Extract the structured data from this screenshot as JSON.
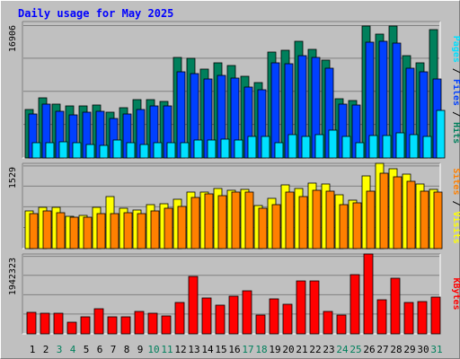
{
  "title": "Daily usage for May 2025",
  "colors": {
    "hits": "#00805C",
    "files": "#0040FF",
    "pages": "#00E0FF",
    "visits": "#FFFF00",
    "sites": "#FF8000",
    "kbytes": "#FF0000",
    "weekday_label": "#000000",
    "weekend_label": "#00805C",
    "title": "#0000FF",
    "plot_bg": "#C0C0C0",
    "grid": "#808080"
  },
  "chart_data": [
    {
      "type": "bar",
      "panel": "hits-files-pages",
      "axis_label": "16906",
      "ylim": [
        0,
        16906
      ],
      "legend": [
        "Pages",
        "Files",
        "Hits"
      ],
      "categories": [
        "1",
        "2",
        "3",
        "4",
        "5",
        "6",
        "7",
        "8",
        "9",
        "10",
        "11",
        "12",
        "13",
        "14",
        "15",
        "16",
        "17",
        "18",
        "19",
        "20",
        "21",
        "22",
        "23",
        "24",
        "25",
        "26",
        "27",
        "28",
        "29",
        "30",
        "31"
      ],
      "weekend": [
        false,
        false,
        true,
        true,
        false,
        false,
        false,
        false,
        false,
        true,
        true,
        false,
        false,
        false,
        false,
        false,
        true,
        true,
        false,
        false,
        false,
        false,
        false,
        true,
        true,
        false,
        false,
        false,
        false,
        false,
        true
      ],
      "series": [
        {
          "name": "Hits",
          "values": [
            6200,
            7700,
            6900,
            6600,
            6700,
            6800,
            5900,
            6400,
            7500,
            7400,
            7200,
            12800,
            12700,
            11300,
            12200,
            11800,
            10400,
            9600,
            13500,
            13800,
            14900,
            13900,
            12500,
            7600,
            7300,
            16900,
            15800,
            16800,
            13100,
            12100,
            16400
          ]
        },
        {
          "name": "Files",
          "values": [
            5600,
            6900,
            6000,
            5500,
            5800,
            6000,
            5100,
            5600,
            6200,
            6700,
            6600,
            11000,
            10800,
            10100,
            10600,
            10200,
            9100,
            8700,
            12200,
            12000,
            13100,
            12800,
            11500,
            6900,
            6800,
            14800,
            14900,
            14700,
            11500,
            11000,
            10100
          ]
        },
        {
          "name": "Pages",
          "values": [
            1900,
            2000,
            2100,
            2000,
            1700,
            1600,
            2300,
            1900,
            1700,
            2000,
            1900,
            1900,
            2300,
            2300,
            2400,
            2300,
            2700,
            2700,
            2000,
            3000,
            2800,
            3000,
            3600,
            2700,
            2000,
            2900,
            2900,
            3200,
            3000,
            2700,
            6100
          ]
        }
      ]
    },
    {
      "type": "bar",
      "panel": "visits-sites",
      "axis_label": "1529",
      "ylim": [
        0,
        1529
      ],
      "legend": [
        "Sites",
        "Visits"
      ],
      "categories": [
        "1",
        "2",
        "3",
        "4",
        "5",
        "6",
        "7",
        "8",
        "9",
        "10",
        "11",
        "12",
        "13",
        "14",
        "15",
        "16",
        "17",
        "18",
        "19",
        "20",
        "21",
        "22",
        "23",
        "24",
        "25",
        "26",
        "27",
        "28",
        "29",
        "30",
        "31"
      ],
      "weekend": [
        false,
        false,
        true,
        true,
        false,
        false,
        false,
        false,
        false,
        true,
        true,
        false,
        false,
        false,
        false,
        false,
        true,
        true,
        false,
        false,
        false,
        false,
        false,
        true,
        true,
        false,
        false,
        false,
        false,
        false,
        true
      ],
      "series": [
        {
          "name": "Visits",
          "values": [
            690,
            760,
            760,
            600,
            620,
            760,
            960,
            750,
            720,
            810,
            830,
            920,
            1040,
            1040,
            1110,
            1080,
            1100,
            800,
            930,
            1180,
            1110,
            1210,
            1200,
            1000,
            900,
            1350,
            1570,
            1480,
            1370,
            1200,
            1100
          ]
        },
        {
          "name": "Sites",
          "values": [
            640,
            690,
            660,
            580,
            580,
            640,
            650,
            660,
            640,
            700,
            750,
            780,
            940,
            1020,
            980,
            1040,
            1040,
            740,
            820,
            1040,
            960,
            1080,
            1060,
            810,
            850,
            1060,
            1390,
            1320,
            1240,
            1060,
            1040
          ]
        }
      ]
    },
    {
      "type": "bar",
      "panel": "kbytes",
      "axis_label": "1942323",
      "ylim": [
        0,
        1942323
      ],
      "legend": [
        "KBytes"
      ],
      "categories": [
        "1",
        "2",
        "3",
        "4",
        "5",
        "6",
        "7",
        "8",
        "9",
        "10",
        "11",
        "12",
        "13",
        "14",
        "15",
        "16",
        "17",
        "18",
        "19",
        "20",
        "21",
        "22",
        "23",
        "24",
        "25",
        "26",
        "27",
        "28",
        "29",
        "30",
        "31"
      ],
      "weekend": [
        false,
        false,
        true,
        true,
        false,
        false,
        false,
        false,
        false,
        true,
        true,
        false,
        false,
        false,
        false,
        false,
        true,
        true,
        false,
        false,
        false,
        false,
        false,
        true,
        true,
        false,
        false,
        false,
        false,
        false,
        true
      ],
      "series": [
        {
          "name": "KBytes",
          "values": [
            550000,
            520000,
            520000,
            300000,
            430000,
            620000,
            430000,
            420000,
            570000,
            520000,
            460000,
            780000,
            1450000,
            900000,
            730000,
            940000,
            1080000,
            480000,
            880000,
            750000,
            1330000,
            1330000,
            560000,
            470000,
            1490000,
            2000000,
            850000,
            1390000,
            780000,
            820000,
            930000
          ]
        }
      ]
    }
  ]
}
